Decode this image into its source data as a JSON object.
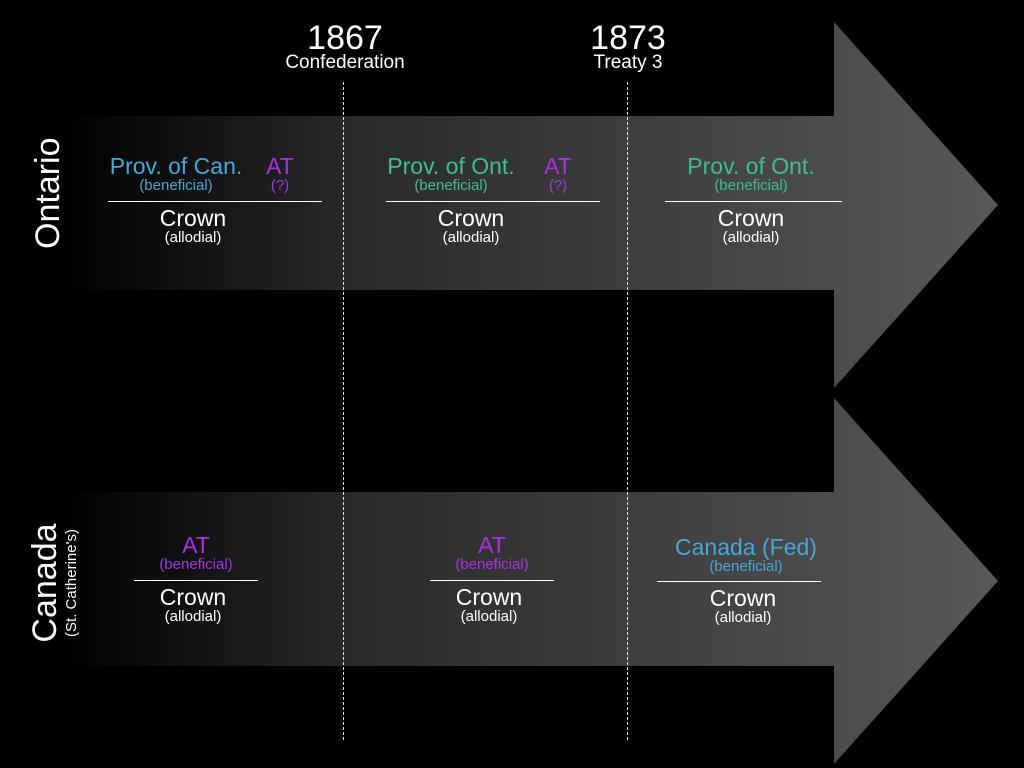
{
  "timeline": {
    "markers": [
      {
        "year": "1867",
        "event": "Confederation"
      },
      {
        "year": "1873",
        "event": "Treaty 3"
      }
    ]
  },
  "rows": {
    "ontario": {
      "label": "Ontario",
      "periods": [
        {
          "holder": "Prov. of Can.",
          "holder_sub": "(beneficial)",
          "at": "AT",
          "at_sub": "(?)",
          "crown": "Crown",
          "crown_sub": "(allodial)"
        },
        {
          "holder": "Prov. of Ont.",
          "holder_sub": "(beneficial)",
          "at": "AT",
          "at_sub": "(?)",
          "crown": "Crown",
          "crown_sub": "(allodial)"
        },
        {
          "holder": "Prov. of Ont.",
          "holder_sub": "(beneficial)",
          "crown": "Crown",
          "crown_sub": "(allodial)"
        }
      ]
    },
    "canada": {
      "label": "Canada",
      "sublabel": "(St. Catherine's)",
      "periods": [
        {
          "holder": "AT",
          "holder_sub": "(beneficial)",
          "crown": "Crown",
          "crown_sub": "(allodial)"
        },
        {
          "holder": "AT",
          "holder_sub": "(beneficial)",
          "crown": "Crown",
          "crown_sub": "(allodial)"
        },
        {
          "holder": "Canada (Fed)",
          "holder_sub": "(beneficial)",
          "crown": "Crown",
          "crown_sub": "(allodial)"
        }
      ]
    }
  },
  "colors": {
    "province_of_canada": "#46a8d9",
    "province_of_ontario": "#3fbf8f",
    "aboriginal_title": "#a632e6",
    "federal": "#46a8d9",
    "crown": "#ffffff"
  }
}
